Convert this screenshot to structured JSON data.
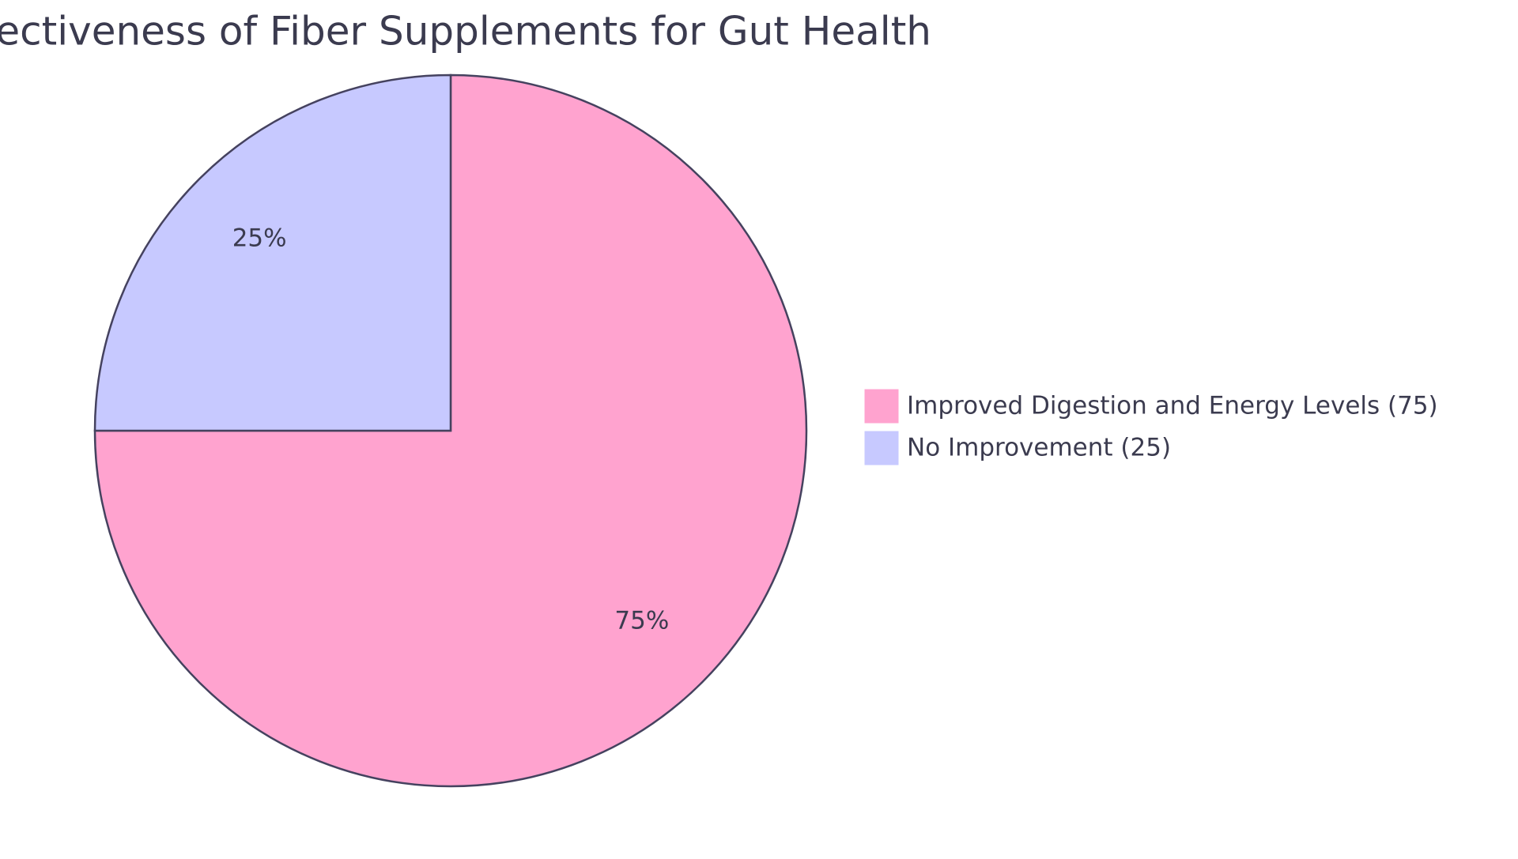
{
  "chart_data": {
    "type": "pie",
    "title": "Effectiveness of Fiber Supplements for Gut Health",
    "categories": [
      "Improved Digestion and Energy Levels (75)",
      "No Improvement (25)"
    ],
    "values": [
      75,
      25
    ],
    "value_labels": [
      "75%",
      "25%"
    ],
    "colors": [
      "#ffa3cf",
      "#c7c9ff"
    ]
  }
}
